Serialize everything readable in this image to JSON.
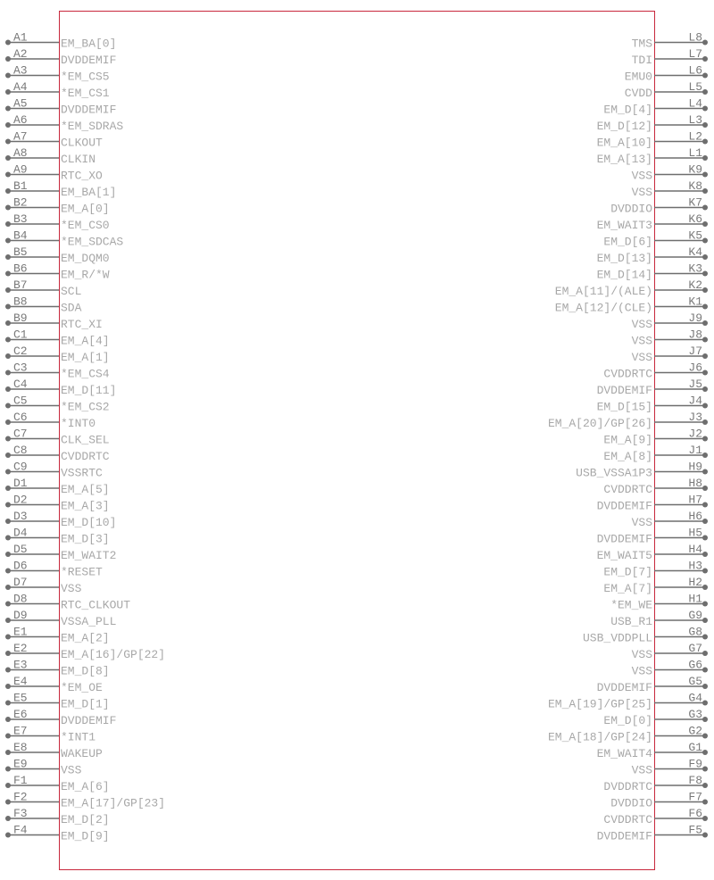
{
  "colors": {
    "body_outline": "#c8283c",
    "pin": "#6e6e6e",
    "label": "#a8a8a8"
  },
  "left_pins": [
    [
      "A1",
      "EM_BA[0]"
    ],
    [
      "A2",
      "DVDDEMIF"
    ],
    [
      "A3",
      "*EM_CS5"
    ],
    [
      "A4",
      "*EM_CS1"
    ],
    [
      "A5",
      "DVDDEMIF"
    ],
    [
      "A6",
      "*EM_SDRAS"
    ],
    [
      "A7",
      "CLKOUT"
    ],
    [
      "A8",
      "CLKIN"
    ],
    [
      "A9",
      "RTC_XO"
    ],
    [
      "B1",
      "EM_BA[1]"
    ],
    [
      "B2",
      "EM_A[0]"
    ],
    [
      "B3",
      "*EM_CS0"
    ],
    [
      "B4",
      "*EM_SDCAS"
    ],
    [
      "B5",
      "EM_DQM0"
    ],
    [
      "B6",
      "EM_R/*W"
    ],
    [
      "B7",
      "SCL"
    ],
    [
      "B8",
      "SDA"
    ],
    [
      "B9",
      "RTC_XI"
    ],
    [
      "C1",
      "EM_A[4]"
    ],
    [
      "C2",
      "EM_A[1]"
    ],
    [
      "C3",
      "*EM_CS4"
    ],
    [
      "C4",
      "EM_D[11]"
    ],
    [
      "C5",
      "*EM_CS2"
    ],
    [
      "C6",
      "*INT0"
    ],
    [
      "C7",
      "CLK_SEL"
    ],
    [
      "C8",
      "CVDDRTC"
    ],
    [
      "C9",
      "VSSRTC"
    ],
    [
      "D1",
      "EM_A[5]"
    ],
    [
      "D2",
      "EM_A[3]"
    ],
    [
      "D3",
      "EM_D[10]"
    ],
    [
      "D4",
      "EM_D[3]"
    ],
    [
      "D5",
      "EM_WAIT2"
    ],
    [
      "D6",
      "*RESET"
    ],
    [
      "D7",
      "VSS"
    ],
    [
      "D8",
      "RTC_CLKOUT"
    ],
    [
      "D9",
      "VSSA_PLL"
    ],
    [
      "E1",
      "EM_A[2]"
    ],
    [
      "E2",
      "EM_A[16]/GP[22]"
    ],
    [
      "E3",
      "EM_D[8]"
    ],
    [
      "E4",
      "*EM_OE"
    ],
    [
      "E5",
      "EM_D[1]"
    ],
    [
      "E6",
      "DVDDEMIF"
    ],
    [
      "E7",
      "*INT1"
    ],
    [
      "E8",
      "WAKEUP"
    ],
    [
      "E9",
      "VSS"
    ],
    [
      "F1",
      "EM_A[6]"
    ],
    [
      "F2",
      "EM_A[17]/GP[23]"
    ],
    [
      "F3",
      "EM_D[2]"
    ],
    [
      "F4",
      "EM_D[9]"
    ]
  ],
  "right_pins": [
    [
      "L8",
      "TMS"
    ],
    [
      "L7",
      "TDI"
    ],
    [
      "L6",
      "EMU0"
    ],
    [
      "L5",
      "CVDD"
    ],
    [
      "L4",
      "EM_D[4]"
    ],
    [
      "L3",
      "EM_D[12]"
    ],
    [
      "L2",
      "EM_A[10]"
    ],
    [
      "L1",
      "EM_A[13]"
    ],
    [
      "K9",
      "VSS"
    ],
    [
      "K8",
      "VSS"
    ],
    [
      "K7",
      "DVDDIO"
    ],
    [
      "K6",
      "EM_WAIT3"
    ],
    [
      "K5",
      "EM_D[6]"
    ],
    [
      "K4",
      "EM_D[13]"
    ],
    [
      "K3",
      "EM_D[14]"
    ],
    [
      "K2",
      "EM_A[11]/(ALE)"
    ],
    [
      "K1",
      "EM_A[12]/(CLE)"
    ],
    [
      "J9",
      "VSS"
    ],
    [
      "J8",
      "VSS"
    ],
    [
      "J7",
      "VSS"
    ],
    [
      "J6",
      "CVDDRTC"
    ],
    [
      "J5",
      "DVDDEMIF"
    ],
    [
      "J4",
      "EM_D[15]"
    ],
    [
      "J3",
      "EM_A[20]/GP[26]"
    ],
    [
      "J2",
      "EM_A[9]"
    ],
    [
      "J1",
      "EM_A[8]"
    ],
    [
      "H9",
      "USB_VSSA1P3"
    ],
    [
      "H8",
      "CVDDRTC"
    ],
    [
      "H7",
      "DVDDEMIF"
    ],
    [
      "H6",
      "VSS"
    ],
    [
      "H5",
      "DVDDEMIF"
    ],
    [
      "H4",
      "EM_WAIT5"
    ],
    [
      "H3",
      "EM_D[7]"
    ],
    [
      "H2",
      "EM_A[7]"
    ],
    [
      "H1",
      "*EM_WE"
    ],
    [
      "G9",
      "USB_R1"
    ],
    [
      "G8",
      "USB_VDDPLL"
    ],
    [
      "G7",
      "VSS"
    ],
    [
      "G6",
      "VSS"
    ],
    [
      "G5",
      "DVDDEMIF"
    ],
    [
      "G4",
      "EM_A[19]/GP[25]"
    ],
    [
      "G3",
      "EM_D[0]"
    ],
    [
      "G2",
      "EM_A[18]/GP[24]"
    ],
    [
      "G1",
      "EM_WAIT4"
    ],
    [
      "F9",
      "VSS"
    ],
    [
      "F8",
      "DVDDRTC"
    ],
    [
      "F7",
      "DVDDIO"
    ],
    [
      "F6",
      "CVDDRTC"
    ],
    [
      "F5",
      "DVDDEMIF"
    ]
  ]
}
